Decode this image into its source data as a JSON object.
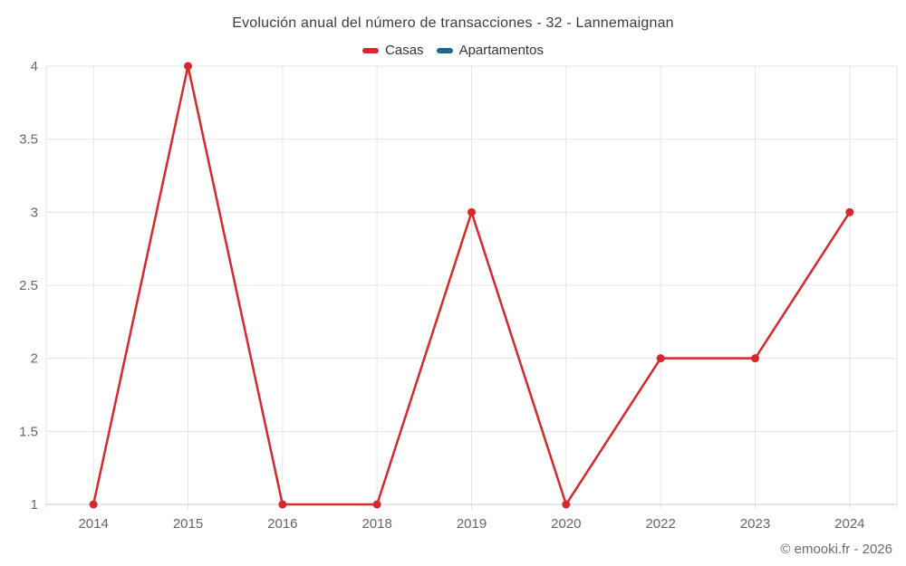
{
  "page": {
    "footer": "© emooki.fr - 2026"
  },
  "legend": {
    "items": [
      {
        "label": "Casas",
        "color": "#d6282d"
      },
      {
        "label": "Apartamentos",
        "color": "#17698f"
      }
    ]
  },
  "style": {
    "background": "#ffffff",
    "grid_color": "#e6e6e6",
    "axis_line_color": "#cccccc",
    "axis_label_color": "#666666",
    "title_color": "#3c3c3c",
    "legend_text_color": "#333333",
    "footer_color": "#6b6b6b"
  },
  "chart_data": {
    "type": "line",
    "title": "Evolución anual del número de transacciones - 32 - Lannemaignan",
    "categories": [
      "2014",
      "2015",
      "2016",
      "2018",
      "2019",
      "2020",
      "2022",
      "2023",
      "2024"
    ],
    "series": [
      {
        "name": "Casas",
        "color": "#d6282d",
        "values": [
          1,
          4,
          1,
          1,
          3,
          1,
          2,
          2,
          3
        ]
      },
      {
        "name": "Apartamentos",
        "color": "#17698f",
        "values": []
      }
    ],
    "xlabel": "",
    "ylabel": "",
    "ylim": [
      1,
      4
    ],
    "yticks": [
      1,
      1.5,
      2,
      2.5,
      3,
      3.5,
      4
    ],
    "grid": true,
    "legend_position": "top"
  }
}
